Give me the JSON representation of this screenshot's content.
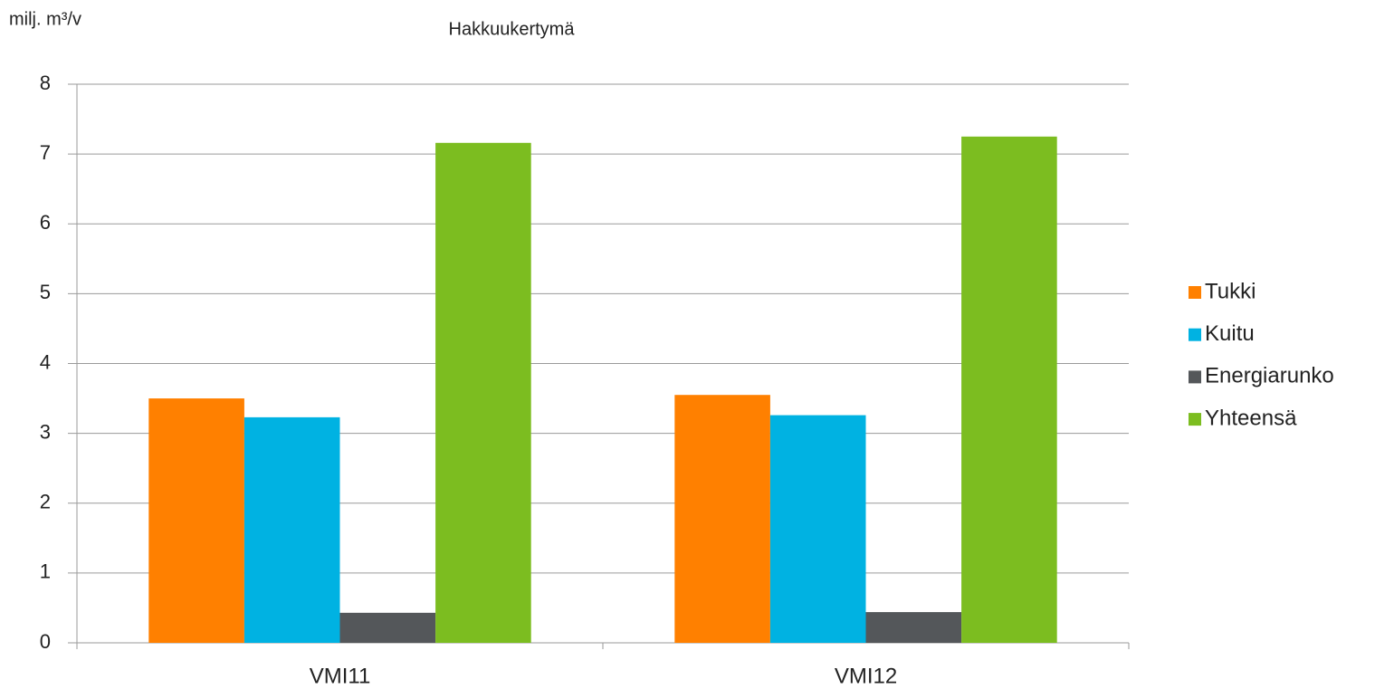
{
  "chart_data": {
    "type": "bar",
    "title": "Hakkuukertymä",
    "y_label": "milj. m³/v",
    "categories": [
      "VMI11",
      "VMI12"
    ],
    "series": [
      {
        "name": "Tukki",
        "color": "#ff8000",
        "values": [
          3.5,
          3.55
        ]
      },
      {
        "name": "Kuitu",
        "color": "#00b2e2",
        "values": [
          3.23,
          3.26
        ]
      },
      {
        "name": "Energiarunko",
        "color": "#54575a",
        "values": [
          0.43,
          0.44
        ]
      },
      {
        "name": "Yhteensä",
        "color": "#7cbd20",
        "values": [
          7.16,
          7.25
        ]
      }
    ],
    "ylim": [
      0,
      8
    ],
    "yticks": [
      0,
      1,
      2,
      3,
      4,
      5,
      6,
      7,
      8
    ],
    "grid": true,
    "legend": "right"
  }
}
